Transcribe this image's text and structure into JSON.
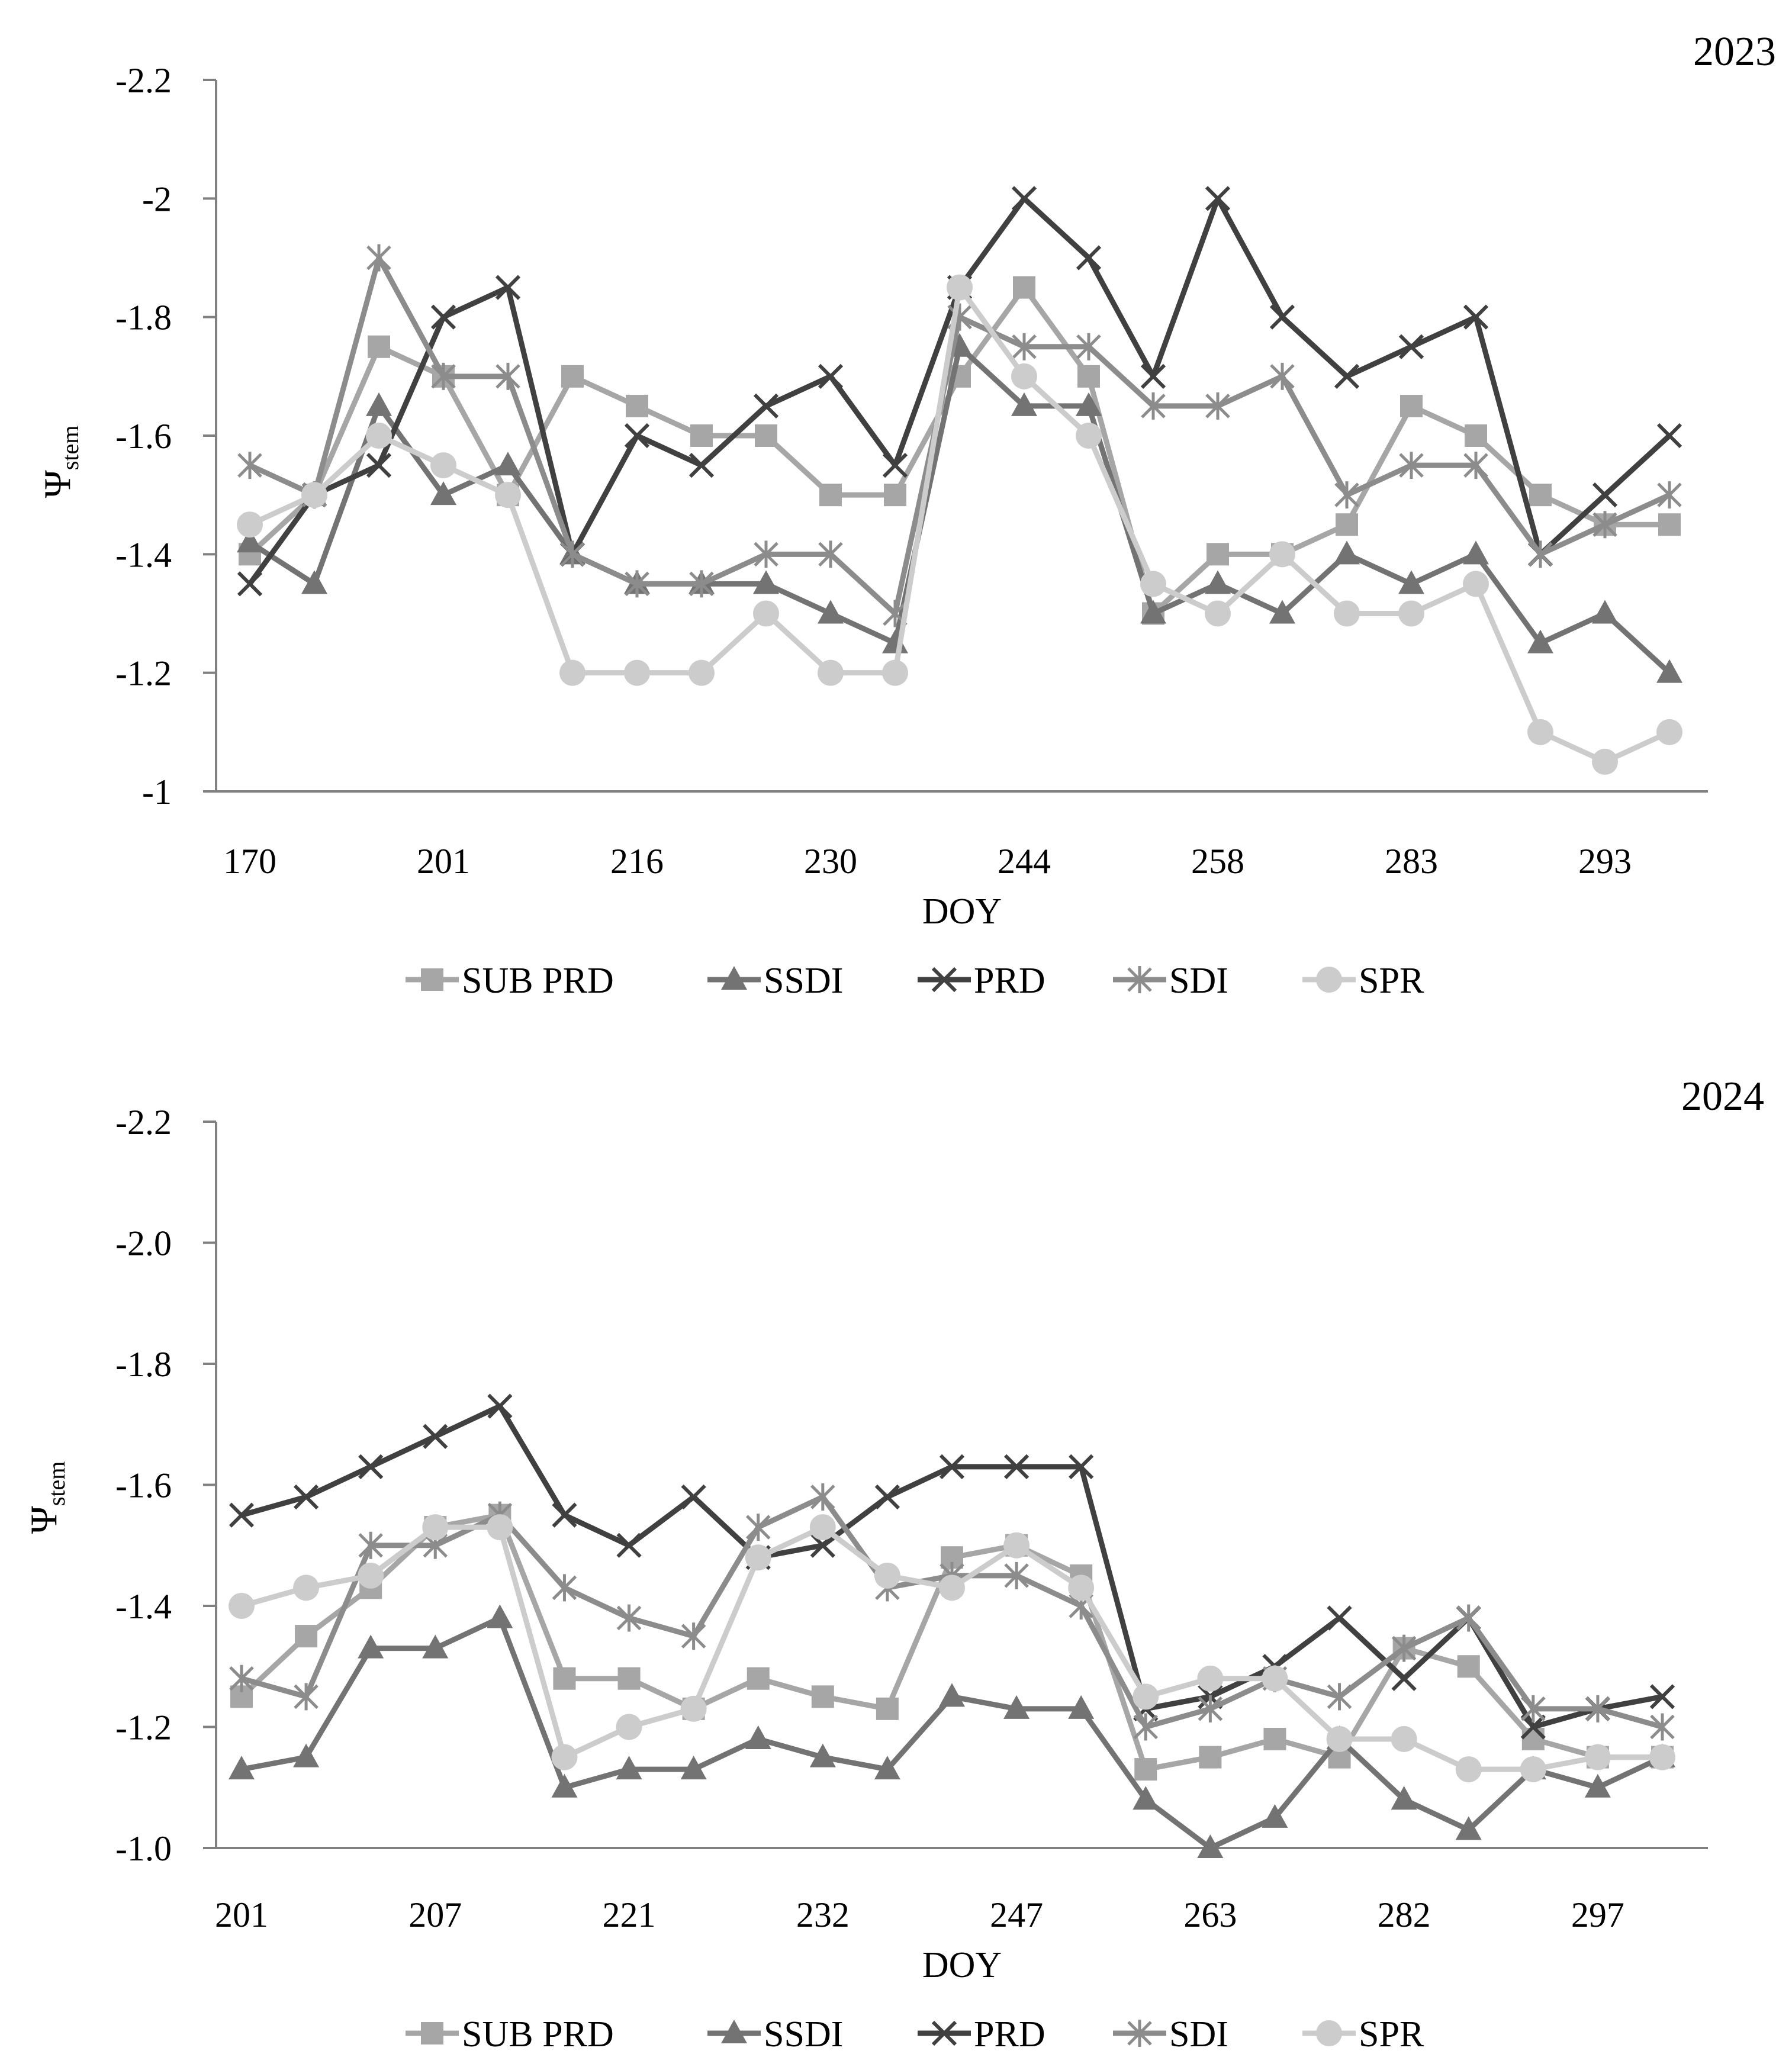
{
  "chart_data": [
    {
      "type": "line",
      "title": "2023",
      "xlabel": "DOY",
      "ylabel": "Ψ",
      "ylabel_subscript": "stem",
      "ylim": [
        -1,
        -2.2
      ],
      "yticks": [
        "-2.2",
        "-2",
        "-1.8",
        "-1.6",
        "-1.4",
        "-1.2",
        "-1"
      ],
      "ytick_values": [
        -2.2,
        -2.0,
        -1.8,
        -1.6,
        -1.4,
        -1.2,
        -1.0
      ],
      "xtick_labels": [
        "170",
        "201",
        "216",
        "230",
        "244",
        "258",
        "283",
        "293"
      ],
      "xtick_at_index": [
        0,
        3,
        6,
        9,
        12,
        15,
        18,
        21
      ],
      "n_points": 23,
      "grid": false,
      "legend_position": "bottom",
      "series": [
        {
          "name": "SUB PRD",
          "marker": "square",
          "color": "#a6a6a6",
          "values": [
            -1.4,
            -1.5,
            -1.75,
            -1.7,
            -1.5,
            -1.7,
            -1.65,
            -1.6,
            -1.6,
            -1.5,
            -1.5,
            -1.7,
            -1.85,
            -1.7,
            -1.3,
            -1.4,
            -1.4,
            -1.45,
            -1.65,
            -1.6,
            -1.5,
            -1.45,
            -1.45
          ]
        },
        {
          "name": "SSDI",
          "marker": "triangle",
          "color": "#737373",
          "values": [
            -1.42,
            -1.35,
            -1.65,
            -1.5,
            -1.55,
            -1.4,
            -1.35,
            -1.35,
            -1.35,
            -1.3,
            -1.25,
            -1.75,
            -1.65,
            -1.65,
            -1.3,
            -1.35,
            -1.3,
            -1.4,
            -1.35,
            -1.4,
            -1.25,
            -1.3,
            -1.2
          ]
        },
        {
          "name": "PRD",
          "marker": "x",
          "color": "#404040",
          "values": [
            -1.35,
            -1.5,
            -1.55,
            -1.8,
            -1.85,
            -1.4,
            -1.6,
            -1.55,
            -1.65,
            -1.7,
            -1.55,
            -1.85,
            -2.0,
            -1.9,
            -1.7,
            -2.0,
            -1.8,
            -1.7,
            -1.75,
            -1.8,
            -1.4,
            -1.5,
            -1.6
          ]
        },
        {
          "name": "SDI",
          "marker": "star",
          "color": "#8c8c8c",
          "values": [
            -1.55,
            -1.5,
            -1.9,
            -1.7,
            -1.7,
            -1.4,
            -1.35,
            -1.35,
            -1.4,
            -1.4,
            -1.3,
            -1.8,
            -1.75,
            -1.75,
            -1.65,
            -1.65,
            -1.7,
            -1.5,
            -1.55,
            -1.55,
            -1.4,
            -1.45,
            -1.5
          ]
        },
        {
          "name": "SPR",
          "marker": "circle",
          "color": "#cccccc",
          "values": [
            -1.45,
            -1.5,
            -1.6,
            -1.55,
            -1.5,
            -1.2,
            -1.2,
            -1.2,
            -1.3,
            -1.2,
            -1.2,
            -1.85,
            -1.7,
            -1.6,
            -1.35,
            -1.3,
            -1.4,
            -1.3,
            -1.3,
            -1.35,
            -1.1,
            -1.05,
            -1.1
          ]
        }
      ]
    },
    {
      "type": "line",
      "title": "2024",
      "xlabel": "DOY",
      "ylabel": "Ψ",
      "ylabel_subscript": "stem",
      "ylim": [
        -1.0,
        -2.2
      ],
      "yticks": [
        "-2.2",
        "-2.0",
        "-1.8",
        "-1.6",
        "-1.4",
        "-1.2",
        "-1.0"
      ],
      "ytick_values": [
        -2.2,
        -2.0,
        -1.8,
        -1.6,
        -1.4,
        -1.2,
        -1.0
      ],
      "xtick_labels": [
        "201",
        "207",
        "221",
        "232",
        "247",
        "263",
        "282",
        "297"
      ],
      "xtick_at_index": [
        0,
        3,
        6,
        9,
        12,
        15,
        18,
        21
      ],
      "n_points": 23,
      "grid": false,
      "legend_position": "bottom",
      "series": [
        {
          "name": "SUB PRD",
          "marker": "square",
          "color": "#a6a6a6",
          "values": [
            -1.25,
            -1.35,
            -1.43,
            -1.53,
            -1.55,
            -1.28,
            -1.28,
            -1.23,
            -1.28,
            -1.25,
            -1.23,
            -1.48,
            -1.5,
            -1.45,
            -1.13,
            -1.15,
            -1.18,
            -1.15,
            -1.33,
            -1.3,
            -1.18,
            -1.15,
            -1.15
          ]
        },
        {
          "name": "SSDI",
          "marker": "triangle",
          "color": "#737373",
          "values": [
            -1.13,
            -1.15,
            -1.33,
            -1.33,
            -1.38,
            -1.1,
            -1.13,
            -1.13,
            -1.18,
            -1.15,
            -1.13,
            -1.25,
            -1.23,
            -1.23,
            -1.08,
            -1.0,
            -1.05,
            -1.18,
            -1.08,
            -1.03,
            -1.13,
            -1.1,
            -1.15
          ]
        },
        {
          "name": "PRD",
          "marker": "x",
          "color": "#404040",
          "values": [
            -1.55,
            -1.58,
            -1.63,
            -1.68,
            -1.73,
            -1.55,
            -1.5,
            -1.58,
            -1.48,
            -1.5,
            -1.58,
            -1.63,
            -1.63,
            -1.63,
            -1.23,
            -1.25,
            -1.3,
            -1.38,
            -1.28,
            -1.38,
            -1.2,
            -1.23,
            -1.25
          ]
        },
        {
          "name": "SDI",
          "marker": "star",
          "color": "#8c8c8c",
          "values": [
            -1.28,
            -1.25,
            -1.5,
            -1.5,
            -1.55,
            -1.43,
            -1.38,
            -1.35,
            -1.53,
            -1.58,
            -1.43,
            -1.45,
            -1.45,
            -1.4,
            -1.2,
            -1.23,
            -1.28,
            -1.25,
            -1.33,
            -1.38,
            -1.23,
            -1.23,
            -1.2
          ]
        },
        {
          "name": "SPR",
          "marker": "circle",
          "color": "#cccccc",
          "values": [
            -1.4,
            -1.43,
            -1.45,
            -1.53,
            -1.53,
            -1.15,
            -1.2,
            -1.23,
            -1.48,
            -1.53,
            -1.45,
            -1.43,
            -1.5,
            -1.43,
            -1.25,
            -1.28,
            -1.28,
            -1.18,
            -1.18,
            -1.13,
            -1.13,
            -1.15,
            -1.15
          ]
        }
      ]
    }
  ]
}
